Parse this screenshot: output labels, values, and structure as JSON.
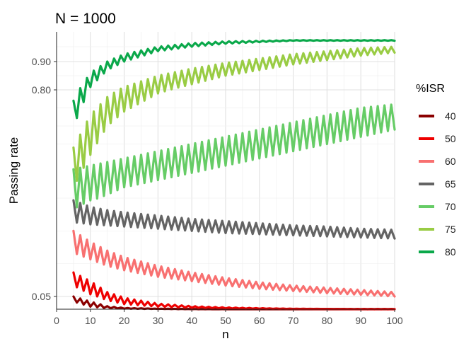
{
  "chart_data": {
    "type": "line",
    "title": "N = 1000",
    "xlabel": "n",
    "ylabel": "Passing rate",
    "xlim": [
      0,
      100
    ],
    "x_ticks": [
      "0",
      "10",
      "20",
      "30",
      "40",
      "50",
      "60",
      "70",
      "80",
      "90",
      "100"
    ],
    "y_ticks": [
      "0.05",
      "0.80",
      "0.90"
    ],
    "y_tick_values": [
      0.05,
      0.8,
      0.9
    ],
    "grid": true,
    "legend_title": "%ISR",
    "legend_position": "right",
    "series": [
      {
        "name": "40",
        "color": "#8b0000",
        "x": [
          5,
          10,
          15,
          20,
          30,
          40,
          50,
          60,
          70,
          80,
          90,
          100
        ],
        "low": [
          0.03,
          0.01,
          0.004,
          0.002,
          0.001,
          0.0,
          0.0,
          0.0,
          0.0,
          0.0,
          0.0,
          0.0
        ],
        "high": [
          0.05,
          0.03,
          0.012,
          0.005,
          0.002,
          0.001,
          0.0,
          0.0,
          0.0,
          0.0,
          0.0,
          0.0
        ]
      },
      {
        "name": "50",
        "color": "#ee0000",
        "x": [
          5,
          10,
          15,
          20,
          30,
          40,
          50,
          60,
          70,
          80,
          90,
          100
        ],
        "low": [
          0.1,
          0.06,
          0.035,
          0.02,
          0.01,
          0.006,
          0.003,
          0.002,
          0.001,
          0.001,
          0.0,
          0.0
        ],
        "high": [
          0.16,
          0.12,
          0.07,
          0.045,
          0.022,
          0.012,
          0.007,
          0.004,
          0.002,
          0.001,
          0.001,
          0.001
        ]
      },
      {
        "name": "60",
        "color": "#f87070",
        "x": [
          5,
          10,
          15,
          20,
          30,
          40,
          50,
          60,
          70,
          80,
          90,
          100
        ],
        "low": [
          0.25,
          0.22,
          0.19,
          0.17,
          0.14,
          0.12,
          0.1,
          0.085,
          0.075,
          0.065,
          0.058,
          0.05
        ],
        "high": [
          0.35,
          0.3,
          0.26,
          0.23,
          0.19,
          0.16,
          0.135,
          0.115,
          0.1,
          0.09,
          0.08,
          0.07
        ]
      },
      {
        "name": "65",
        "color": "#646464",
        "x": [
          5,
          10,
          15,
          20,
          30,
          40,
          50,
          60,
          70,
          80,
          90,
          100
        ],
        "low": [
          0.39,
          0.38,
          0.375,
          0.37,
          0.36,
          0.35,
          0.34,
          0.335,
          0.33,
          0.325,
          0.32,
          0.315
        ],
        "high": [
          0.49,
          0.46,
          0.445,
          0.435,
          0.42,
          0.405,
          0.395,
          0.385,
          0.375,
          0.37,
          0.36,
          0.355
        ]
      },
      {
        "name": "70",
        "color": "#66cc66",
        "x": [
          5,
          10,
          15,
          20,
          30,
          40,
          50,
          60,
          70,
          80,
          90,
          100
        ],
        "low": [
          0.45,
          0.49,
          0.51,
          0.53,
          0.55,
          0.57,
          0.59,
          0.61,
          0.63,
          0.65,
          0.67,
          0.69
        ],
        "high": [
          0.58,
          0.59,
          0.6,
          0.61,
          0.63,
          0.65,
          0.67,
          0.69,
          0.71,
          0.73,
          0.75,
          0.76
        ]
      },
      {
        "name": "75",
        "color": "#99cc44",
        "x": [
          5,
          10,
          15,
          20,
          30,
          40,
          50,
          60,
          70,
          80,
          90,
          100
        ],
        "low": [
          0.53,
          0.62,
          0.7,
          0.74,
          0.79,
          0.82,
          0.85,
          0.87,
          0.89,
          0.905,
          0.92,
          0.93
        ],
        "high": [
          0.64,
          0.73,
          0.78,
          0.81,
          0.85,
          0.875,
          0.895,
          0.91,
          0.925,
          0.935,
          0.945,
          0.95
        ]
      },
      {
        "name": "80",
        "color": "#0aa84a",
        "x": [
          5,
          10,
          15,
          20,
          30,
          40,
          50,
          60,
          70,
          80,
          90,
          100
        ],
        "low": [
          0.7,
          0.81,
          0.87,
          0.9,
          0.935,
          0.95,
          0.96,
          0.965,
          0.97,
          0.97,
          0.97,
          0.97
        ],
        "high": [
          0.77,
          0.86,
          0.9,
          0.925,
          0.95,
          0.962,
          0.968,
          0.97,
          0.972,
          0.972,
          0.972,
          0.972
        ]
      }
    ]
  }
}
